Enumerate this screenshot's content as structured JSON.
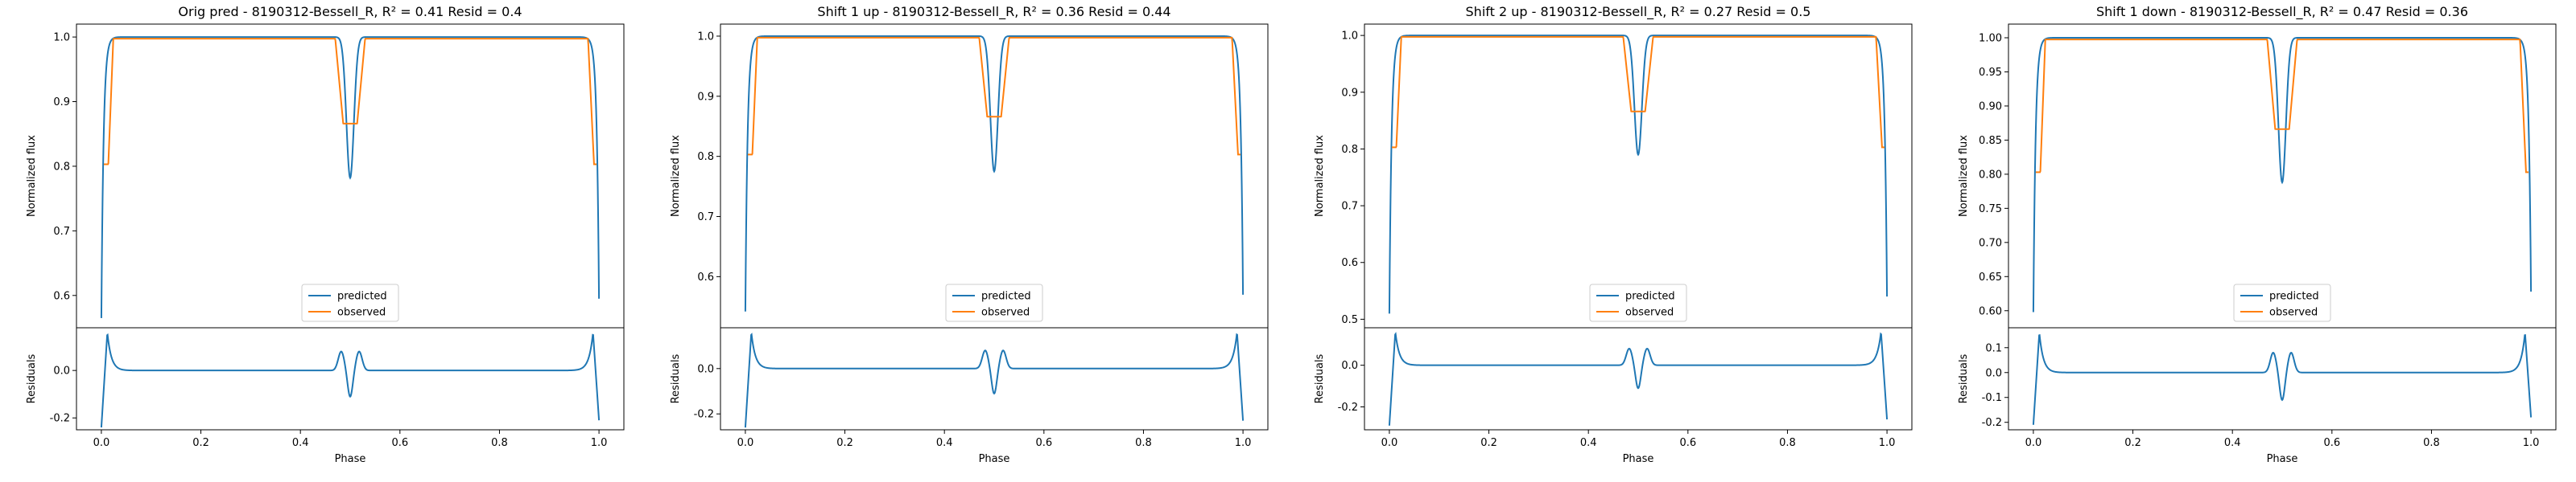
{
  "chart_data": [
    {
      "type": "line",
      "title": "Orig pred - 8190312-Bessell_R, R² = 0.41 Resid = 0.4",
      "top": {
        "ylabel": "Normalized flux",
        "ylim": [
          0.55,
          1.02
        ],
        "yticks": [
          0.6,
          0.7,
          0.8,
          0.9,
          1.0
        ],
        "dips": {
          "pred_edge": 0.565,
          "pred_mid": 0.782,
          "pred_end": 0.595,
          "obs_edge": 0.803,
          "obs_mid": 0.866,
          "obs_end": 0.803
        }
      },
      "bottom": {
        "ylabel": "Residuals",
        "ylim": [
          -0.25,
          0.18
        ],
        "yticks": [
          -0.2,
          0.0
        ],
        "peak": 0.16,
        "mid_peak": 0.08,
        "mid_dip": -0.07,
        "edge_min": -0.24,
        "end_min": -0.21
      },
      "xlabel": "Phase",
      "xlim": [
        -0.05,
        1.05
      ],
      "xticks": [
        0.0,
        0.2,
        0.4,
        0.6,
        0.8,
        1.0
      ],
      "legend": {
        "position": "bottom-center",
        "entries": [
          "predicted",
          "observed"
        ]
      }
    },
    {
      "type": "line",
      "title": "Shift 1 up - 8190312-Bessell_R, R² = 0.36 Resid = 0.44",
      "top": {
        "ylabel": "Normalized flux",
        "ylim": [
          0.515,
          1.02
        ],
        "yticks": [
          0.6,
          0.7,
          0.8,
          0.9,
          1.0
        ],
        "dips": {
          "pred_edge": 0.542,
          "pred_mid": 0.775,
          "pred_end": 0.57,
          "obs_edge": 0.803,
          "obs_mid": 0.866,
          "obs_end": 0.803
        }
      },
      "bottom": {
        "ylabel": "Residuals",
        "ylim": [
          -0.27,
          0.18
        ],
        "yticks": [
          -0.2,
          0.0
        ],
        "peak": 0.16,
        "mid_peak": 0.08,
        "mid_dip": -0.07,
        "edge_min": -0.26,
        "end_min": -0.23
      },
      "xlabel": "Phase",
      "xlim": [
        -0.05,
        1.05
      ],
      "xticks": [
        0.0,
        0.2,
        0.4,
        0.6,
        0.8,
        1.0
      ],
      "legend": {
        "position": "bottom-center",
        "entries": [
          "predicted",
          "observed"
        ]
      }
    },
    {
      "type": "line",
      "title": "Shift 2 up - 8190312-Bessell_R, R² = 0.27 Resid = 0.5",
      "top": {
        "ylabel": "Normalized flux",
        "ylim": [
          0.485,
          1.02
        ],
        "yticks": [
          0.5,
          0.6,
          0.7,
          0.8,
          0.9,
          1.0
        ],
        "dips": {
          "pred_edge": 0.51,
          "pred_mid": 0.79,
          "pred_end": 0.54,
          "obs_edge": 0.803,
          "obs_mid": 0.866,
          "obs_end": 0.803
        }
      },
      "bottom": {
        "ylabel": "Residuals",
        "ylim": [
          -0.31,
          0.18
        ],
        "yticks": [
          -0.2,
          0.0
        ],
        "peak": 0.16,
        "mid_peak": 0.08,
        "mid_dip": -0.07,
        "edge_min": -0.29,
        "end_min": -0.26
      },
      "xlabel": "Phase",
      "xlim": [
        -0.05,
        1.05
      ],
      "xticks": [
        0.0,
        0.2,
        0.4,
        0.6,
        0.8,
        1.0
      ],
      "legend": {
        "position": "bottom-center",
        "entries": [
          "predicted",
          "observed"
        ]
      }
    },
    {
      "type": "line",
      "title": "Shift 1 down - 8190312-Bessell_R, R² = 0.47 Resid = 0.36",
      "top": {
        "ylabel": "Normalized flux",
        "ylim": [
          0.575,
          1.02
        ],
        "yticks": [
          0.6,
          0.65,
          0.7,
          0.75,
          0.8,
          0.85,
          0.9,
          0.95,
          1.0
        ],
        "dips": {
          "pred_edge": 0.598,
          "pred_mid": 0.788,
          "pred_end": 0.628,
          "obs_edge": 0.803,
          "obs_mid": 0.866,
          "obs_end": 0.803
        }
      },
      "bottom": {
        "ylabel": "Residuals",
        "ylim": [
          -0.23,
          0.18
        ],
        "yticks": [
          -0.2,
          -0.1,
          0.0,
          0.1
        ],
        "peak": 0.16,
        "mid_peak": 0.08,
        "mid_dip": -0.07,
        "edge_min": -0.21,
        "end_min": -0.18
      },
      "xlabel": "Phase",
      "xlim": [
        -0.05,
        1.05
      ],
      "xticks": [
        0.0,
        0.2,
        0.4,
        0.6,
        0.8,
        1.0
      ],
      "legend": {
        "position": "bottom-center",
        "entries": [
          "predicted",
          "observed"
        ]
      }
    }
  ],
  "colors": {
    "predicted": "#1f77b4",
    "observed": "#ff7f0e"
  }
}
